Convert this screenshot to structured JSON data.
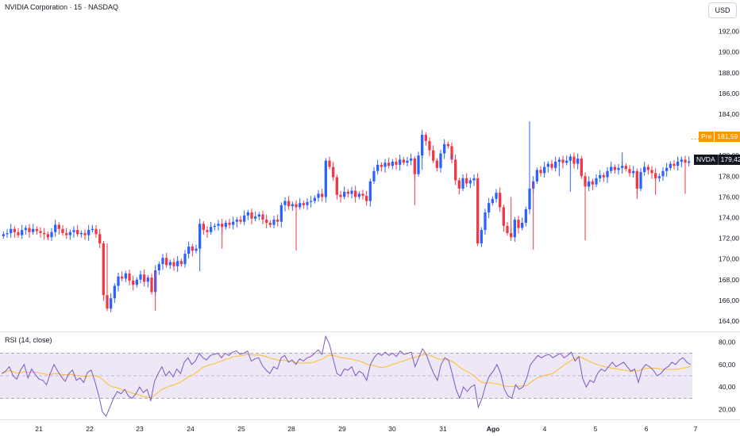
{
  "header": {
    "title": "NVIDIA Corporation · 15 · NASDAQ",
    "currency": "USD"
  },
  "indicator": {
    "label": "RSI (14, close)"
  },
  "tags": {
    "pre_label": "Pre",
    "pre_value": "181,59",
    "symbol_label": "NVDA",
    "symbol_value": "179,42"
  },
  "colors": {
    "up": "#2962ff",
    "down": "#f23645",
    "rsi_line": "#7e57c2",
    "rsi_ma": "#fbc02d",
    "rsi_band": "#ede7f6",
    "pre": "#ff9800"
  },
  "chart_data": [
    {
      "type": "candlestick",
      "title": "NVIDIA Corporation · 15 · NASDAQ",
      "ylim": [
        163,
        193.5
      ],
      "y_ticks": [
        "164,00",
        "166,00",
        "168,00",
        "170,00",
        "172,00",
        "174,00",
        "176,00",
        "178,00",
        "180,00",
        "182,00",
        "184,00",
        "186,00",
        "188,00",
        "190,00",
        "192,00"
      ],
      "x_ticks": [
        "21",
        "22",
        "23",
        "24",
        "25",
        "28",
        "29",
        "30",
        "31",
        "Ago",
        "4",
        "5",
        "6",
        "7"
      ],
      "closes": [
        172.4,
        172.5,
        172.9,
        172.6,
        172.3,
        172.8,
        173.0,
        172.6,
        172.9,
        172.7,
        172.5,
        172.4,
        172.1,
        172.6,
        173.3,
        172.9,
        172.5,
        172.3,
        172.6,
        172.8,
        172.4,
        172.5,
        172.3,
        172.8,
        172.9,
        172.4,
        171.5,
        166.5,
        165.2,
        166.2,
        167.4,
        168.3,
        168.1,
        168.6,
        167.9,
        167.5,
        168.0,
        168.5,
        167.8,
        168.2,
        166.8,
        168.9,
        169.5,
        170.1,
        169.4,
        169.7,
        169.3,
        169.8,
        169.5,
        170.5,
        171.2,
        170.8,
        171.0,
        173.4,
        172.8,
        172.6,
        173.1,
        173.2,
        173.4,
        173.1,
        173.5,
        173.3,
        173.6,
        173.8,
        173.6,
        174.2,
        174.5,
        173.9,
        174.1,
        174.3,
        173.8,
        173.5,
        173.3,
        173.8,
        173.6,
        175.2,
        175.6,
        175.1,
        175.3,
        175.0,
        175.4,
        175.2,
        175.5,
        175.6,
        175.9,
        176.3,
        176.0,
        179.5,
        178.9,
        177.9,
        176.2,
        176.0,
        176.5,
        176.3,
        176.6,
        176.0,
        176.3,
        176.1,
        175.6,
        177.5,
        178.5,
        179.1,
        178.9,
        179.3,
        179.0,
        179.4,
        179.1,
        179.6,
        179.3,
        179.5,
        179.7,
        178.2,
        180.0,
        182.0,
        181.4,
        180.5,
        179.5,
        178.8,
        180.2,
        181.1,
        180.9,
        179.6,
        177.6,
        176.8,
        177.8,
        177.3,
        177.6,
        177.8,
        171.5,
        172.8,
        174.5,
        175.4,
        175.8,
        176.4,
        175.0,
        173.2,
        172.5,
        172.1,
        173.8,
        173.0,
        173.5,
        174.8,
        176.8,
        177.5,
        178.6,
        178.3,
        178.9,
        179.2,
        178.8,
        179.4,
        179.6,
        179.3,
        179.5,
        179.9,
        179.2,
        179.7,
        178.0,
        177.0,
        177.5,
        177.2,
        177.8,
        178.1,
        177.9,
        178.5,
        178.9,
        178.6,
        178.8,
        179.0,
        178.7,
        178.3,
        178.5,
        176.8,
        178.4,
        178.9,
        178.6,
        178.3,
        177.8,
        178.0,
        178.5,
        178.8,
        179.2,
        179.0,
        179.4,
        179.6,
        179.3,
        179.42
      ],
      "lows": [
        171.8,
        171.5,
        165.0,
        171.0,
        170.8,
        175.6,
        175.2,
        177.5,
        176.0,
        170.9,
        171.8,
        175.8,
        176.2,
        176.3
      ],
      "highs": [
        173.4,
        173.3,
        168.8,
        174.6,
        175.8,
        179.8,
        178.6,
        180.1,
        183.3,
        178.0,
        176.5,
        180.3,
        179.8,
        179.9
      ],
      "pre_market": 181.59,
      "last": 179.42
    },
    {
      "type": "line",
      "title": "RSI (14, close)",
      "ylim": [
        12,
        88
      ],
      "y_ticks": [
        "20,00",
        "40,00",
        "60,00",
        "80,00"
      ],
      "bands": [
        30,
        50,
        70
      ],
      "series": [
        {
          "values": [
            52,
            54,
            58,
            50,
            47,
            55,
            60,
            48,
            56,
            51,
            47,
            46,
            42,
            52,
            60,
            54,
            49,
            45,
            52,
            55,
            46,
            48,
            44,
            53,
            55,
            45,
            33,
            18,
            14,
            22,
            30,
            36,
            34,
            38,
            32,
            30,
            34,
            40,
            35,
            38,
            28,
            45,
            52,
            58,
            50,
            54,
            49,
            56,
            52,
            62,
            66,
            60,
            63,
            70,
            66,
            64,
            68,
            69,
            70,
            66,
            70,
            68,
            71,
            72,
            69,
            70,
            72,
            63,
            65,
            66,
            59,
            55,
            52,
            58,
            56,
            66,
            68,
            62,
            64,
            60,
            65,
            63,
            66,
            67,
            70,
            73,
            69,
            85,
            78,
            65,
            52,
            50,
            56,
            55,
            58,
            50,
            54,
            52,
            46,
            60,
            66,
            70,
            68,
            71,
            68,
            70,
            67,
            72,
            69,
            70,
            71,
            58,
            66,
            74,
            69,
            60,
            52,
            46,
            60,
            66,
            64,
            52,
            38,
            30,
            40,
            36,
            40,
            42,
            22,
            30,
            42,
            50,
            54,
            60,
            52,
            38,
            32,
            30,
            42,
            38,
            40,
            48,
            60,
            64,
            68,
            66,
            68,
            69,
            66,
            68,
            70,
            66,
            68,
            71,
            63,
            67,
            48,
            40,
            46,
            44,
            52,
            56,
            54,
            58,
            62,
            58,
            60,
            62,
            58,
            54,
            56,
            44,
            56,
            60,
            58,
            55,
            50,
            52,
            56,
            58,
            62,
            60,
            64,
            66,
            62,
            60
          ]
        }
      ]
    }
  ]
}
